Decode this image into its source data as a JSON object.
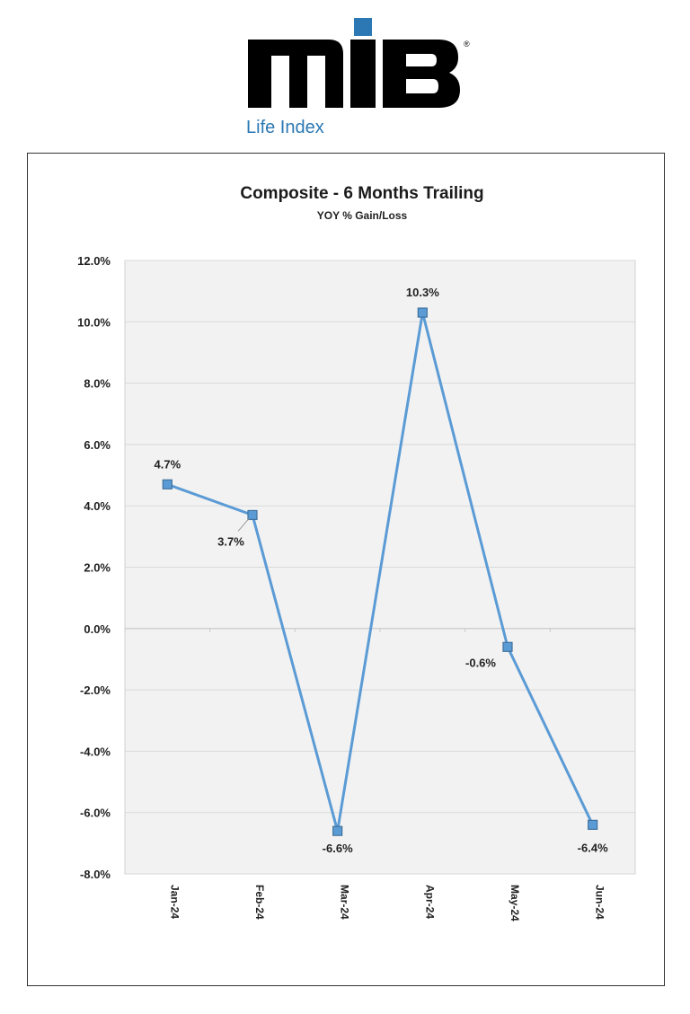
{
  "logo": {
    "wordmark": "mIB",
    "registered": "®",
    "tagline": "Life Index",
    "colors": {
      "dark": "#000000",
      "accent": "#2b78b4"
    }
  },
  "chart_data": {
    "type": "line",
    "title": "Composite - 6 Months Trailing",
    "subtitle": "YOY % Gain/Loss",
    "xlabel": "",
    "ylabel": "",
    "categories": [
      "Jan-24",
      "Feb-24",
      "Mar-24",
      "Apr-24",
      "May-24",
      "Jun-24"
    ],
    "series": [
      {
        "values": [
          4.7,
          3.7,
          -6.6,
          10.3,
          -0.6,
          -6.4
        ],
        "data_labels": [
          "4.7%",
          "3.7%",
          "-6.6%",
          "10.3%",
          "-0.6%",
          "-6.4%"
        ],
        "color": "#5b9bd5",
        "marker": "square"
      }
    ],
    "ylim": [
      -8,
      12
    ],
    "yticks": [
      "12.0%",
      "10.0%",
      "8.0%",
      "6.0%",
      "4.0%",
      "2.0%",
      "0.0%",
      "-2.0%",
      "-4.0%",
      "-6.0%",
      "-8.0%"
    ],
    "ytick_values": [
      12,
      10,
      8,
      6,
      4,
      2,
      0,
      -2,
      -4,
      -6,
      -8
    ],
    "grid": true,
    "legend": "none",
    "plot_background": "#f2f2f2",
    "gridline_color": "#d9d9d9"
  }
}
